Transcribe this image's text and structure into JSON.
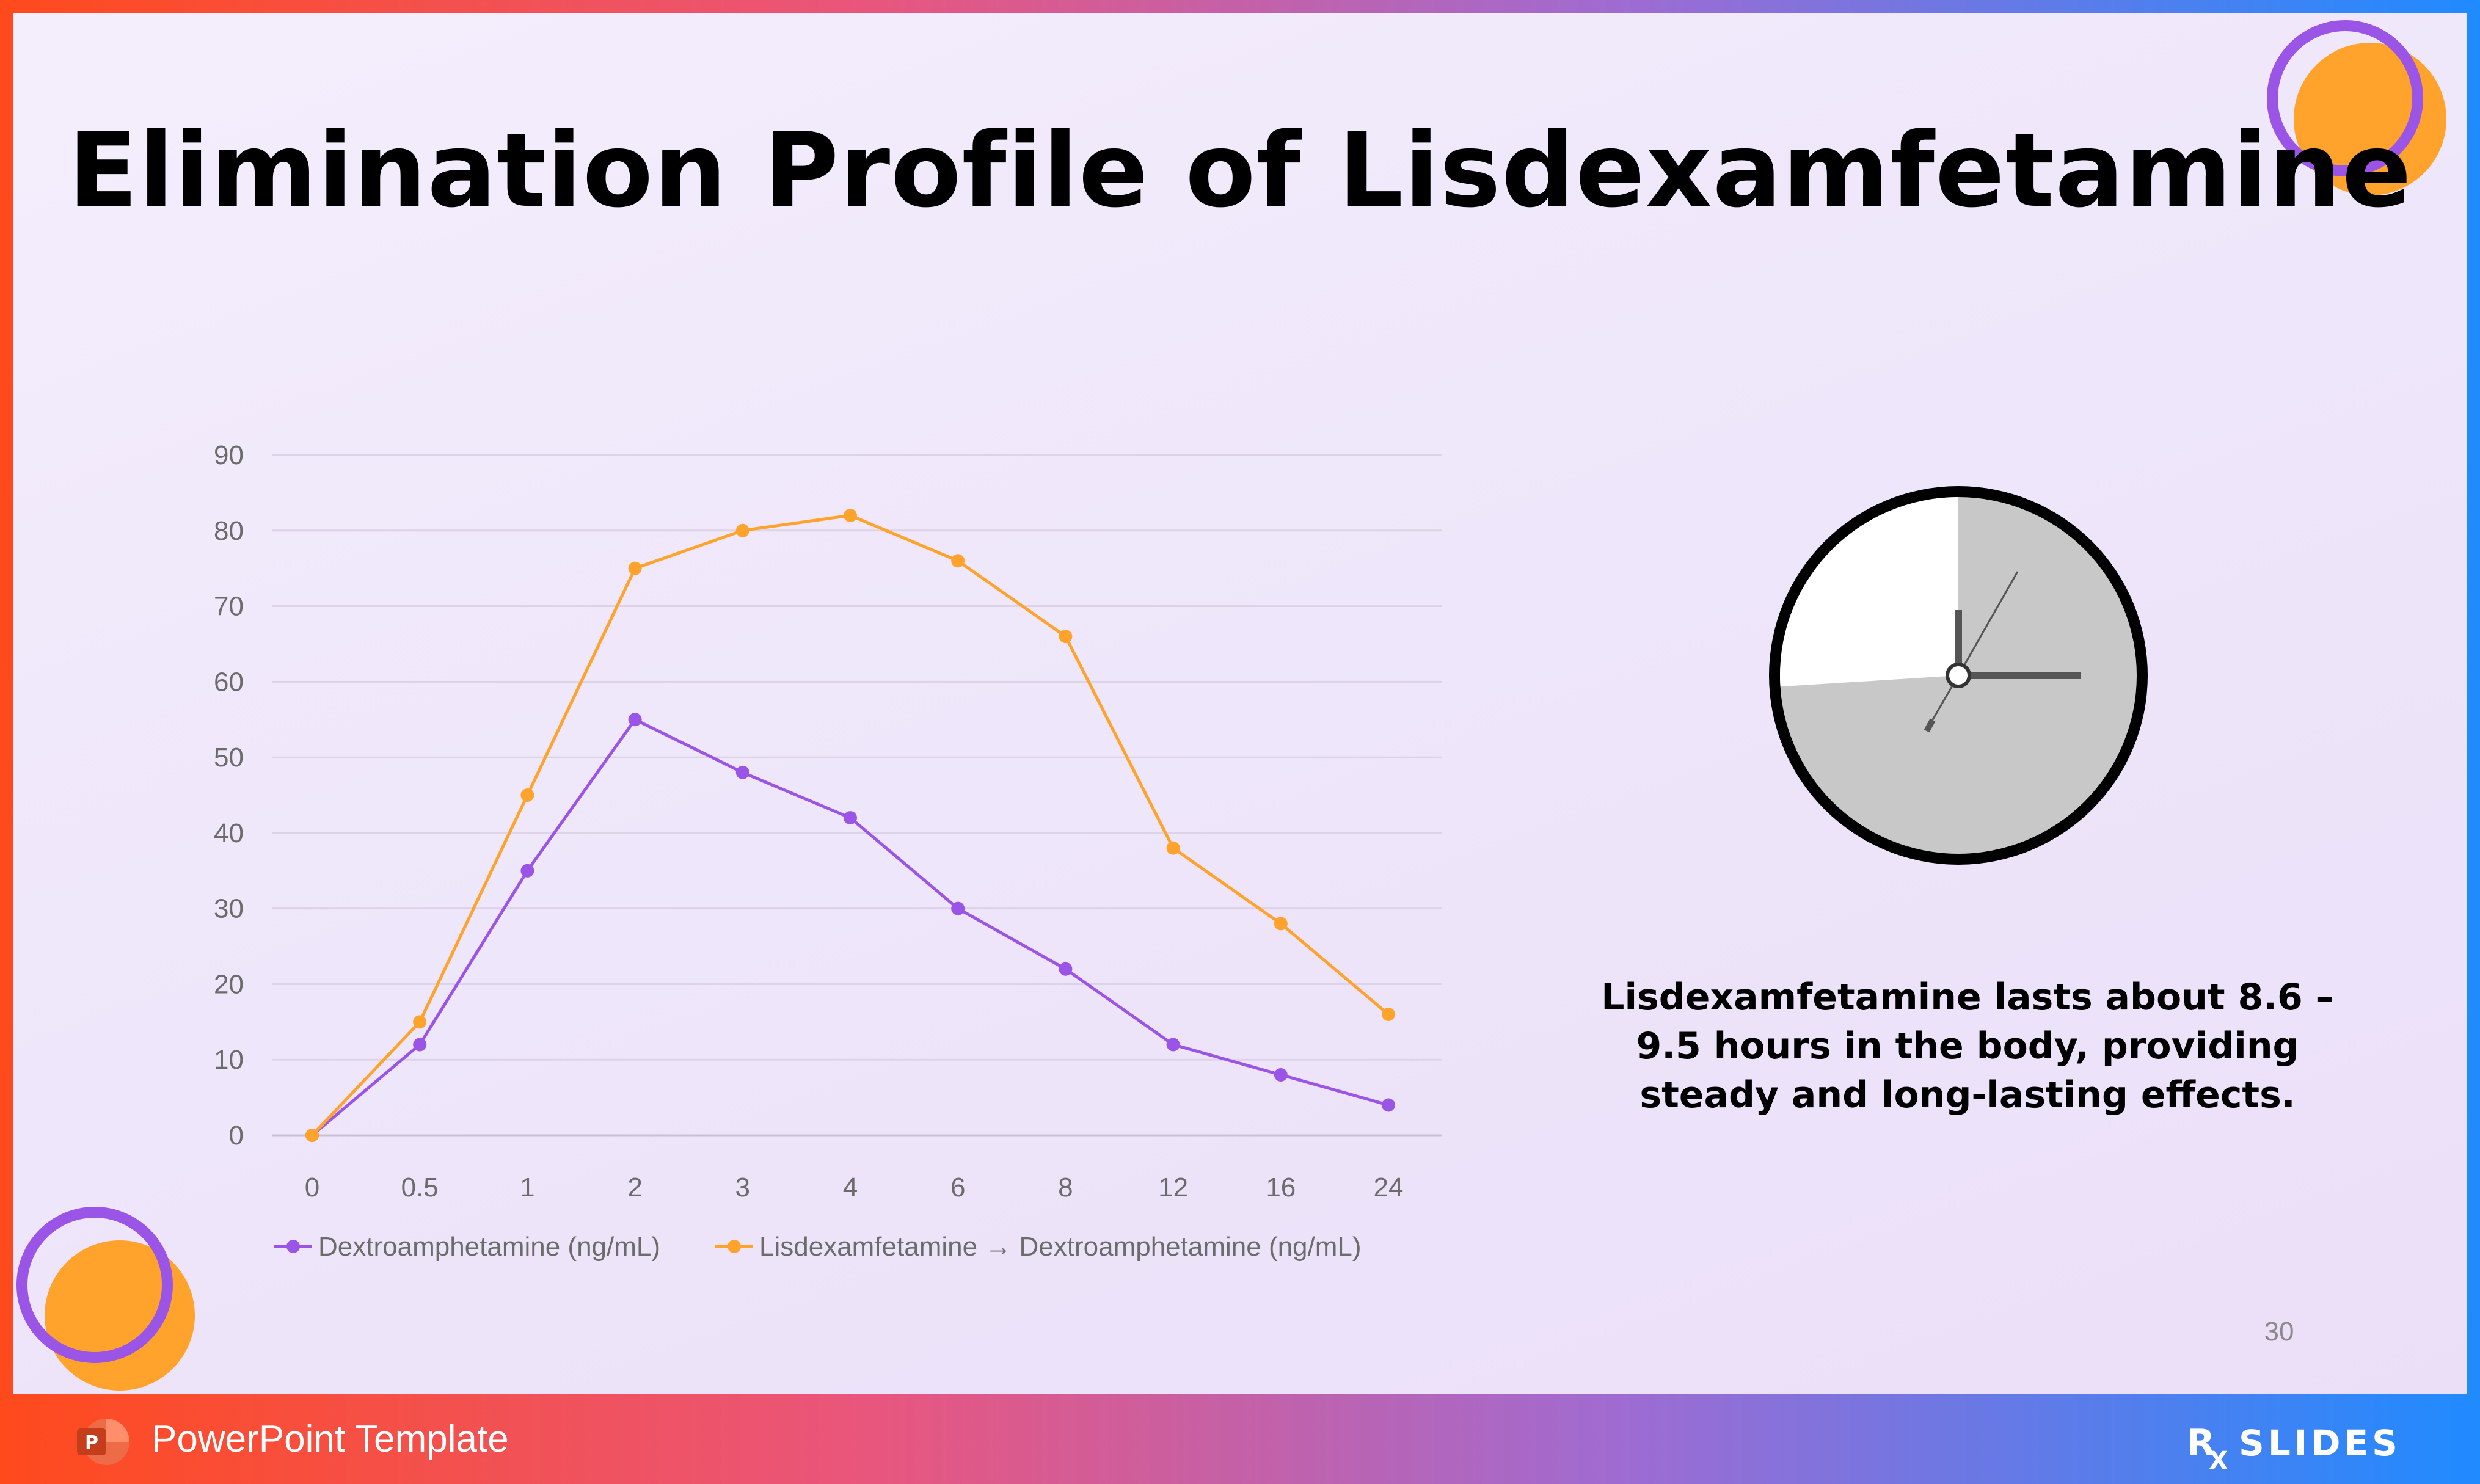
{
  "slide": {
    "title": "Elimination Profile of Lisdexamfetamine",
    "caption": "Lisdexamfetamine lasts about 8.6 – 9.5 hours in the body, providing steady and long-lasting effects.",
    "page_number": "30",
    "colors": {
      "purple": "#9b55e6",
      "orange": "#ffa32d",
      "clock_face": "#c8c8c8",
      "clock_elapsed": "#ffffff"
    }
  },
  "clock": {
    "icon": "clock-icon",
    "elapsed_fraction": 0.26
  },
  "footer": {
    "label": "PowerPoint Template",
    "app_icon": "powerpoint-icon",
    "brand": {
      "rx": "R",
      "rx_sub": "X",
      "word": "SLIDES"
    }
  },
  "chart_data": {
    "type": "line",
    "title": "",
    "xlabel": "",
    "ylabel": "",
    "categories": [
      "0",
      "0.5",
      "1",
      "2",
      "3",
      "4",
      "6",
      "8",
      "12",
      "16",
      "24"
    ],
    "ylim": [
      0,
      90
    ],
    "yticks": [
      0,
      10,
      20,
      30,
      40,
      50,
      60,
      70,
      80,
      90
    ],
    "grid": true,
    "legend": "bottom",
    "series": [
      {
        "name": "Dextroamphetamine (ng/mL)",
        "color": "#9b55e6",
        "values": [
          0,
          12,
          35,
          55,
          48,
          42,
          30,
          22,
          12,
          8,
          4
        ]
      },
      {
        "name": "Lisdexamfetamine → Dextroamphetamine (ng/mL)",
        "color": "#ffa32d",
        "values": [
          0,
          15,
          45,
          75,
          80,
          82,
          76,
          66,
          38,
          28,
          16
        ]
      }
    ]
  }
}
